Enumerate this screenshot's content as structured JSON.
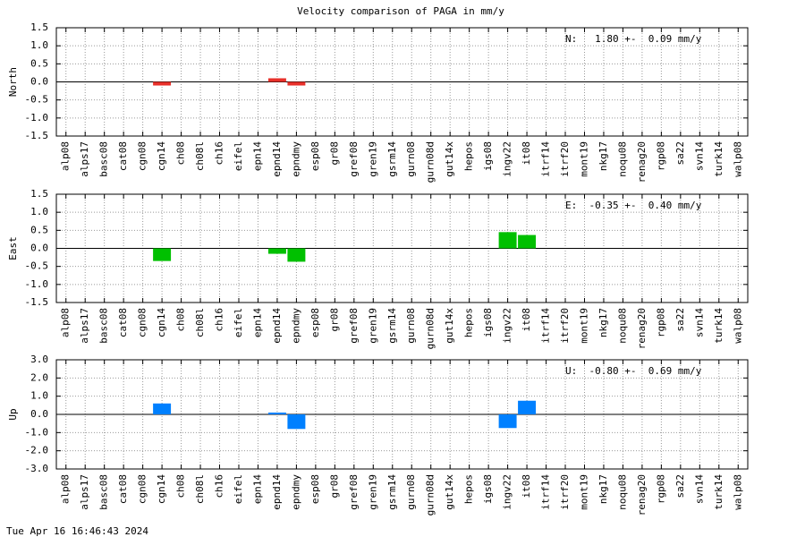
{
  "footer": "Tue Apr 16 16:46:43 2024",
  "chart_data": [
    {
      "type": "bar",
      "title": "Velocity comparison of PAGA in mm/y",
      "ylabel": "North",
      "annotation": "N:   1.80 +-  0.09 mm/y",
      "color": "#e8302a",
      "categories": [
        "alp08",
        "alps17",
        "basc08",
        "cat08",
        "cgn08",
        "cgn14",
        "ch08",
        "ch08l",
        "ch16",
        "eifel",
        "epn14",
        "epnd14",
        "epndmy",
        "esp08",
        "gr08",
        "gref08",
        "gren19",
        "gsrm14",
        "gurn08",
        "gurn08d",
        "gut14x",
        "hepos",
        "igs08",
        "ingv22",
        "it08",
        "itrf14",
        "itrf20",
        "mont19",
        "nkg17",
        "noqu08",
        "renag20",
        "rgp08",
        "sa22",
        "svn14",
        "turk14",
        "walp08"
      ],
      "values": [
        null,
        null,
        null,
        null,
        null,
        -0.1,
        null,
        null,
        null,
        null,
        null,
        0.1,
        -0.1,
        null,
        null,
        null,
        null,
        null,
        null,
        null,
        null,
        null,
        null,
        null,
        null,
        null,
        null,
        null,
        null,
        null,
        null,
        null,
        null,
        null,
        null,
        null
      ],
      "ylim": [
        -1.5,
        1.5
      ],
      "yticks": [
        -1.5,
        {
          "value": -1,
          "label": "-1.0"
        },
        -0.5,
        {
          "value": 0,
          "label": "0.0"
        },
        0.5,
        {
          "value": 1,
          "label": "1.0"
        },
        1.5
      ],
      "grid": true
    },
    {
      "type": "bar",
      "ylabel": "East",
      "annotation": "E:  -0.35 +-  0.40 mm/y",
      "color": "#00c000",
      "categories": [
        "alp08",
        "alps17",
        "basc08",
        "cat08",
        "cgn08",
        "cgn14",
        "ch08",
        "ch08l",
        "ch16",
        "eifel",
        "epn14",
        "epnd14",
        "epndmy",
        "esp08",
        "gr08",
        "gref08",
        "gren19",
        "gsrm14",
        "gurn08",
        "gurn08d",
        "gut14x",
        "hepos",
        "igs08",
        "ingv22",
        "it08",
        "itrf14",
        "itrf20",
        "mont19",
        "nkg17",
        "noqu08",
        "renag20",
        "rgp08",
        "sa22",
        "svn14",
        "turk14",
        "walp08"
      ],
      "values": [
        null,
        null,
        null,
        null,
        null,
        -0.35,
        null,
        null,
        null,
        null,
        null,
        -0.15,
        -0.37,
        null,
        null,
        null,
        null,
        null,
        null,
        null,
        null,
        null,
        null,
        0.45,
        0.37,
        null,
        null,
        null,
        null,
        null,
        null,
        null,
        null,
        null,
        null,
        null
      ],
      "ylim": [
        -1.5,
        1.5
      ],
      "yticks": [
        -1.5,
        {
          "value": -1,
          "label": "-1.0"
        },
        -0.5,
        {
          "value": 0,
          "label": "0.0"
        },
        0.5,
        {
          "value": 1,
          "label": "1.0"
        },
        1.5
      ],
      "grid": true
    },
    {
      "type": "bar",
      "ylabel": "Up",
      "annotation": "U:  -0.80 +-  0.69 mm/y",
      "color": "#0080ff",
      "categories": [
        "alp08",
        "alps17",
        "basc08",
        "cat08",
        "cgn08",
        "cgn14",
        "ch08",
        "ch08l",
        "ch16",
        "eifel",
        "epn14",
        "epnd14",
        "epndmy",
        "esp08",
        "gr08",
        "gref08",
        "gren19",
        "gsrm14",
        "gurn08",
        "gurn08d",
        "gut14x",
        "hepos",
        "igs08",
        "ingv22",
        "it08",
        "itrf14",
        "itrf20",
        "mont19",
        "nkg17",
        "noqu08",
        "renag20",
        "rgp08",
        "sa22",
        "svn14",
        "turk14",
        "walp08"
      ],
      "values": [
        null,
        null,
        null,
        null,
        null,
        0.6,
        null,
        null,
        null,
        null,
        null,
        0.1,
        -0.8,
        null,
        null,
        null,
        null,
        null,
        null,
        null,
        null,
        null,
        null,
        -0.75,
        0.75,
        null,
        null,
        null,
        null,
        null,
        null,
        null,
        null,
        null,
        null,
        null
      ],
      "ylim": [
        -3,
        3
      ],
      "yticks": [
        {
          "value": -3,
          "label": "-3.0"
        },
        {
          "value": -2,
          "label": "-2.0"
        },
        {
          "value": -1,
          "label": "-1.0"
        },
        {
          "value": 0,
          "label": "0.0"
        },
        {
          "value": 1,
          "label": "1.0"
        },
        {
          "value": 2,
          "label": "2.0"
        },
        {
          "value": 3,
          "label": "3.0"
        }
      ],
      "grid": true
    }
  ]
}
